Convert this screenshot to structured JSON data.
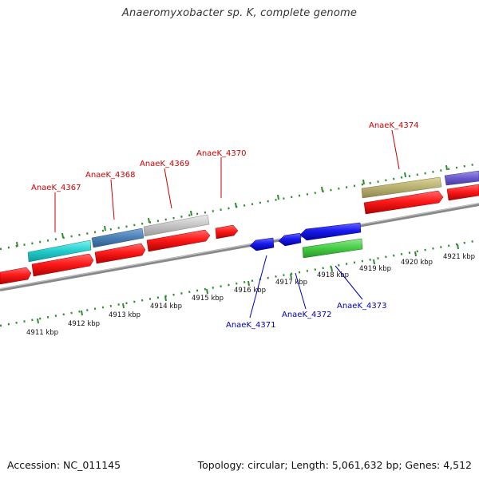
{
  "header": {
    "title": "Anaeromyxobacter sp. K, complete genome"
  },
  "footer": {
    "accession": "Accession: NC_011145",
    "summary": "Topology: circular; Length: 5,061,632 bp; Genes: 4,512"
  },
  "scale": {
    "ticks": [
      "4911 kbp",
      "4912 kbp",
      "4913 kbp",
      "4914 kbp",
      "4915 kbp",
      "4916 kbp",
      "4917 kbp",
      "4918 kbp",
      "4919 kbp",
      "4920 kbp",
      "4921 kbp"
    ]
  },
  "genes_forward": [
    {
      "label": "AnaeK_4367",
      "color": "#22cccc"
    },
    {
      "label": "AnaeK_4368",
      "color": "#4a7fb5"
    },
    {
      "label": "AnaeK_4369",
      "color": "#c4c4c4"
    },
    {
      "label": "AnaeK_4370",
      "color": "#ff2020"
    },
    {
      "label": "AnaeK_4374",
      "color": "#b8b070"
    }
  ],
  "genes_reverse": [
    {
      "label": "AnaeK_4371",
      "color": "#1a1aee"
    },
    {
      "label": "AnaeK_4372",
      "color": "#1a1aee"
    },
    {
      "label": "AnaeK_4373",
      "color": "#1a1aee"
    }
  ],
  "colors": {
    "cds": "#ff1a1a",
    "rna": "#44cc44",
    "backbone": "#888888",
    "tick": "#2e8b2e",
    "label_forward": "#cc0000",
    "label_reverse": "#0000aa"
  }
}
